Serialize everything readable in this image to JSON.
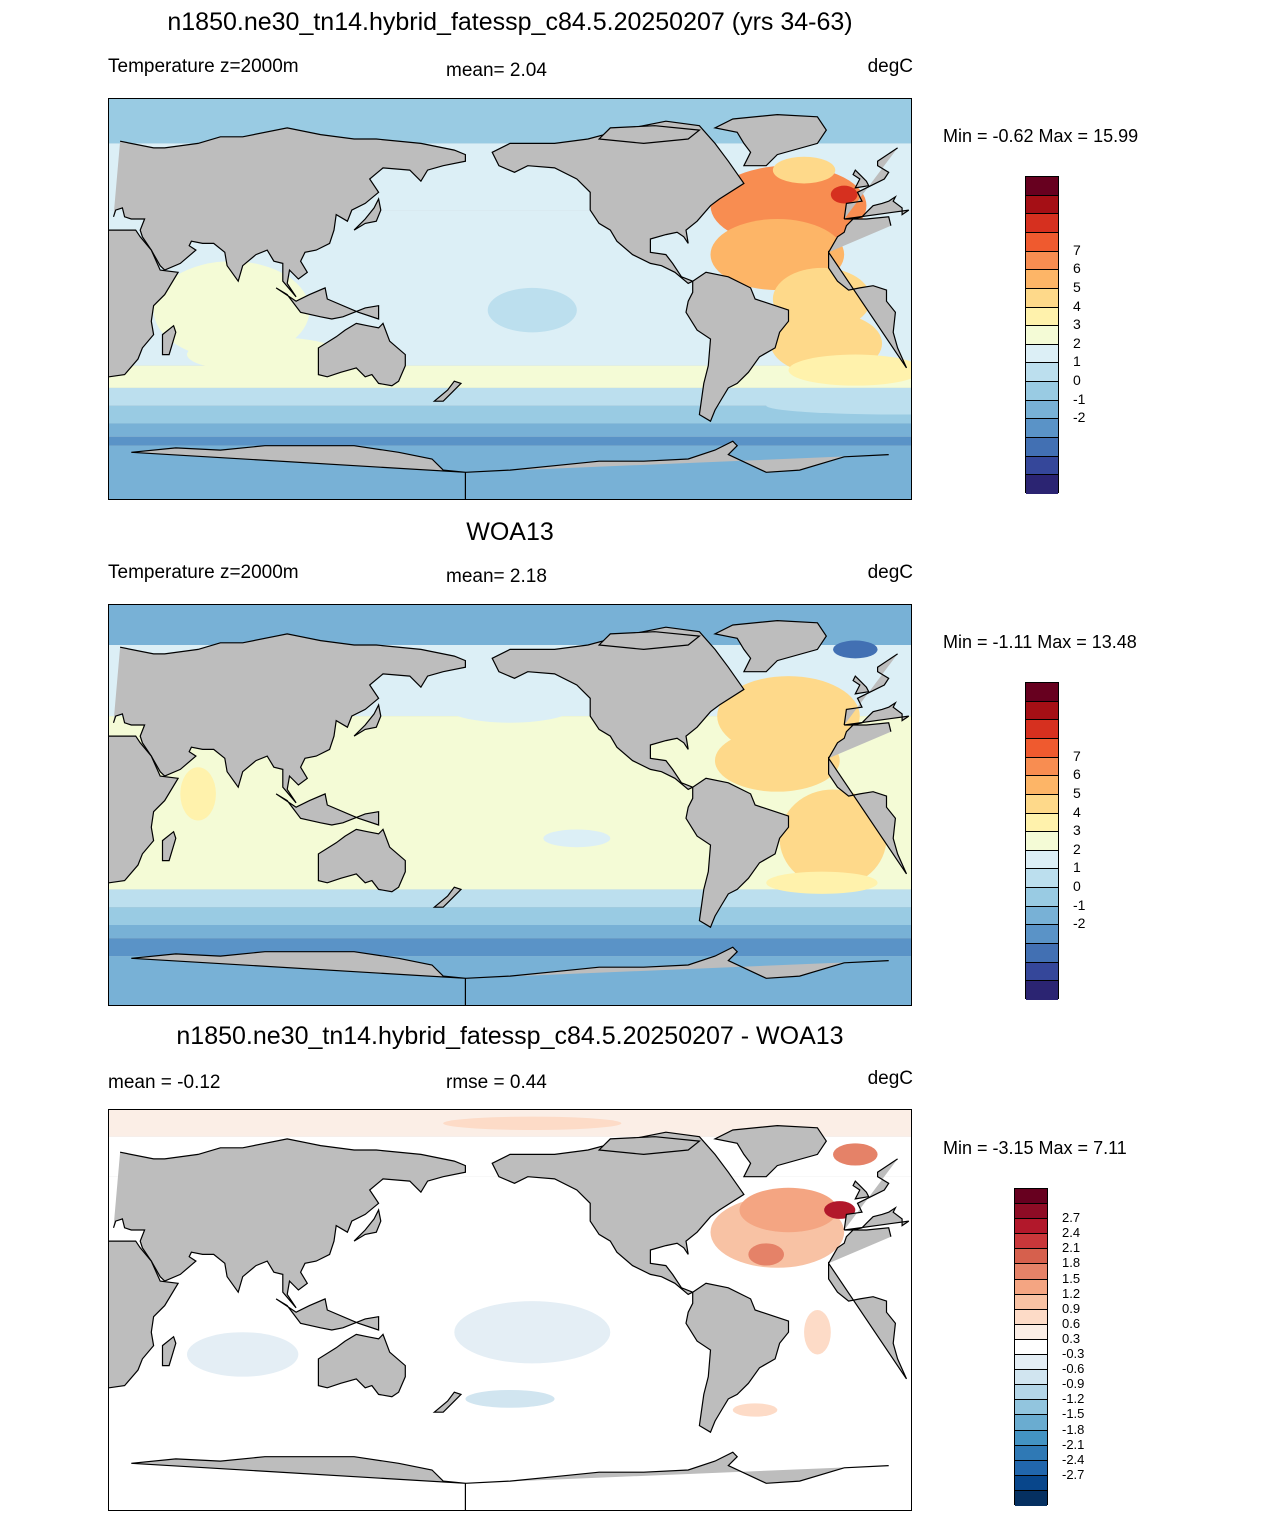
{
  "panels": [
    {
      "id": "model",
      "title": "n1850.ne30_tn14.hybrid_fatessp_c84.5.20250207 (yrs 34-63)",
      "left_label": "Temperature z=2000m",
      "center_label": "mean=   2.04",
      "right_label": "degC",
      "minmax": "Min =  -0.62 Max =  15.99",
      "colorbar": {
        "labels": [
          "7",
          "6",
          "5",
          "4",
          "3",
          "2",
          "1",
          "0",
          "-1",
          "-2"
        ],
        "colors": [
          "#67001f",
          "#a50f15",
          "#d6301f",
          "#ef5a2f",
          "#f88d51",
          "#fdb567",
          "#fed98a",
          "#fff2ac",
          "#f4fbd6",
          "#dceff6",
          "#bcdfee",
          "#99cbe3",
          "#78b1d6",
          "#5a93c7",
          "#4270b3",
          "#35479a",
          "#2b2472"
        ]
      },
      "map_style": "model"
    },
    {
      "id": "obs",
      "title": "WOA13",
      "left_label": "Temperature z=2000m",
      "center_label": "mean=   2.18",
      "right_label": "degC",
      "minmax": "Min =  -1.11 Max =  13.48",
      "colorbar": {
        "labels": [
          "7",
          "6",
          "5",
          "4",
          "3",
          "2",
          "1",
          "0",
          "-1",
          "-2"
        ],
        "colors": [
          "#67001f",
          "#a50f15",
          "#d6301f",
          "#ef5a2f",
          "#f88d51",
          "#fdb567",
          "#fed98a",
          "#fff2ac",
          "#f4fbd6",
          "#dceff6",
          "#bcdfee",
          "#99cbe3",
          "#78b1d6",
          "#5a93c7",
          "#4270b3",
          "#35479a",
          "#2b2472"
        ]
      },
      "map_style": "obs"
    },
    {
      "id": "diff",
      "title": "n1850.ne30_tn14.hybrid_fatessp_c84.5.20250207 - WOA13",
      "left_label": "mean =  -0.12",
      "center_label": "rmse =   0.44",
      "right_label": "degC",
      "minmax": "Min =  -3.15 Max =   7.11",
      "colorbar": {
        "labels": [
          "2.7",
          "2.4",
          "2.1",
          "1.8",
          "1.5",
          "1.2",
          "0.9",
          "0.6",
          "0.3",
          "-0.3",
          "-0.6",
          "-0.9",
          "-1.2",
          "-1.5",
          "-1.8",
          "-2.1",
          "-2.4",
          "-2.7"
        ],
        "colors": [
          "#67001f",
          "#8e0c25",
          "#b2182b",
          "#c9373a",
          "#d6604d",
          "#e58268",
          "#f4a582",
          "#f8c2a4",
          "#fddbc7",
          "#fbeee6",
          "#ffffff",
          "#e4eef5",
          "#d1e5f0",
          "#b4d6e8",
          "#92c5de",
          "#6aacd0",
          "#4393c3",
          "#2f79b5",
          "#2166ac",
          "#08468b",
          "#053061"
        ]
      },
      "map_style": "diff"
    }
  ],
  "colors": {
    "land": "#bdbdbd",
    "coast": "#000000"
  }
}
